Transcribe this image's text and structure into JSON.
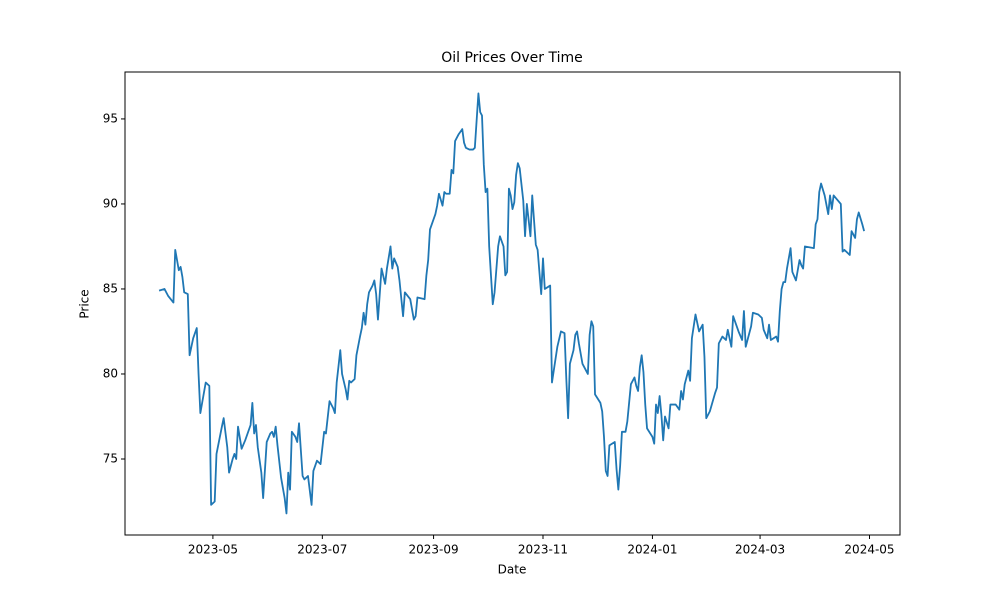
{
  "chart_data": {
    "type": "line",
    "title": "Oil Prices Over Time",
    "x_label": "Date",
    "y_label": "Price",
    "x": [
      -30,
      -27,
      -25,
      -22,
      -21,
      -19,
      -18,
      -17,
      -16,
      -14,
      -13,
      -11,
      -9,
      -8,
      -7,
      -6,
      -4,
      -2,
      -1,
      1,
      2,
      5,
      6,
      8,
      9,
      11,
      12,
      13,
      14,
      16,
      18,
      21,
      22,
      23,
      24,
      25,
      27,
      28,
      30,
      32,
      33,
      34,
      35,
      36,
      38,
      40,
      41,
      42,
      43,
      44,
      46,
      47,
      48,
      50,
      51,
      53,
      55,
      56,
      58,
      60,
      62,
      63,
      65,
      67,
      68,
      69,
      71,
      72,
      74,
      75,
      76,
      77,
      79,
      80,
      82,
      83,
      84,
      85,
      86,
      87,
      89,
      90,
      91,
      92,
      94,
      96,
      97,
      99,
      100,
      101,
      103,
      104,
      106,
      107,
      110,
      112,
      113,
      114,
      118,
      119,
      120,
      121,
      124,
      125,
      126,
      128,
      129,
      130,
      132,
      133,
      134,
      135,
      137,
      139,
      140,
      141,
      143,
      145,
      146,
      148,
      149,
      150,
      151,
      152,
      153,
      154,
      155,
      156,
      157,
      159,
      160,
      162,
      163,
      164,
      165,
      166,
      167,
      168,
      169,
      170,
      171,
      173,
      174,
      175,
      177,
      178,
      180,
      181,
      183,
      184,
      185,
      188,
      189,
      190,
      192,
      194,
      196,
      197,
      198,
      199,
      201,
      202,
      203,
      204,
      206,
      209,
      210,
      211,
      212,
      213,
      216,
      217,
      218,
      219,
      220,
      221,
      224,
      225,
      226,
      227,
      228,
      230,
      231,
      232,
      233,
      235,
      236,
      237,
      238,
      239,
      240,
      241,
      242,
      245,
      246,
      247,
      248,
      249,
      250,
      251,
      252,
      254,
      255,
      258,
      260,
      261,
      262,
      263,
      265,
      266,
      267,
      269,
      270,
      271,
      273,
      274,
      275,
      277,
      280,
      281,
      282,
      284,
      286,
      287,
      289,
      290,
      293,
      295,
      296,
      297,
      298,
      300,
      301,
      304,
      306,
      307,
      309,
      310,
      311,
      314,
      315,
      316,
      317,
      318,
      319,
      320,
      322,
      323,
      325,
      326,
      327,
      328,
      329,
      330,
      335,
      336,
      337,
      338,
      339,
      341,
      343,
      344,
      345,
      346,
      350,
      351,
      352,
      354,
      355,
      356,
      358,
      359,
      360,
      362,
      363
    ],
    "series": [
      {
        "name": "Price",
        "color": "#1f77b4",
        "values": [
          84.9,
          85.0,
          84.6,
          84.2,
          87.3,
          86.1,
          86.3,
          85.7,
          84.8,
          84.7,
          81.1,
          82.1,
          82.7,
          80.0,
          77.7,
          78.3,
          79.5,
          79.3,
          72.3,
          72.5,
          75.3,
          76.9,
          77.4,
          75.7,
          74.2,
          75.0,
          75.3,
          75.0,
          76.9,
          75.6,
          76.1,
          77.0,
          78.3,
          76.5,
          77.0,
          75.7,
          74.2,
          72.7,
          76.0,
          76.5,
          76.6,
          76.3,
          76.9,
          75.8,
          73.9,
          72.7,
          71.8,
          74.2,
          73.2,
          76.6,
          76.3,
          76.0,
          77.1,
          74.0,
          73.8,
          74.0,
          72.3,
          74.3,
          74.9,
          74.7,
          76.6,
          76.5,
          78.4,
          78.0,
          77.7,
          79.5,
          81.4,
          80.0,
          79.1,
          78.5,
          79.6,
          79.5,
          79.7,
          81.1,
          82.2,
          82.7,
          83.6,
          82.9,
          84.1,
          84.8,
          85.2,
          85.5,
          84.7,
          83.2,
          86.2,
          85.3,
          86.2,
          87.5,
          86.2,
          86.8,
          86.3,
          85.5,
          83.4,
          84.8,
          84.4,
          83.2,
          83.4,
          84.5,
          84.4,
          85.8,
          86.7,
          88.5,
          89.4,
          89.9,
          90.6,
          89.9,
          90.7,
          90.6,
          90.6,
          92.0,
          91.8,
          93.7,
          94.1,
          94.4,
          93.6,
          93.3,
          93.2,
          93.2,
          93.3,
          96.5,
          95.4,
          95.2,
          92.3,
          90.7,
          90.9,
          87.5,
          85.8,
          84.1,
          84.8,
          87.5,
          88.1,
          87.5,
          85.8,
          86.0,
          90.9,
          90.5,
          89.7,
          90.1,
          91.7,
          92.4,
          92.1,
          90.2,
          88.1,
          90.0,
          88.1,
          90.5,
          87.6,
          87.3,
          84.7,
          86.8,
          85.0,
          85.2,
          79.5,
          80.2,
          81.6,
          82.5,
          82.4,
          79.7,
          77.4,
          80.6,
          81.4,
          82.3,
          82.5,
          81.8,
          80.6,
          80.0,
          82.3,
          83.1,
          82.8,
          78.8,
          78.3,
          77.8,
          76.3,
          74.3,
          74.0,
          75.8,
          76.0,
          74.4,
          73.2,
          74.6,
          76.6,
          76.6,
          77.2,
          78.3,
          79.4,
          79.8,
          79.3,
          79.0,
          80.4,
          81.1,
          80.1,
          78.2,
          76.8,
          76.3,
          75.9,
          78.2,
          77.7,
          78.7,
          77.6,
          76.1,
          77.5,
          76.8,
          78.2,
          78.2,
          77.9,
          79.0,
          78.5,
          79.4,
          80.2,
          79.6,
          82.1,
          83.5,
          83.0,
          82.5,
          82.9,
          81.0,
          77.4,
          77.8,
          78.9,
          79.2,
          81.8,
          82.2,
          82.0,
          82.6,
          81.6,
          83.4,
          82.5,
          82.0,
          83.7,
          81.6,
          82.0,
          82.8,
          83.6,
          83.5,
          83.3,
          82.6,
          82.1,
          82.9,
          82.0,
          82.2,
          81.9,
          83.7,
          85.0,
          85.4,
          85.4,
          86.2,
          87.4,
          86.0,
          85.5,
          86.1,
          86.7,
          86.4,
          86.2,
          87.5,
          87.4,
          88.8,
          89.1,
          90.7,
          91.2,
          90.5,
          89.4,
          90.5,
          89.7,
          90.5,
          90.0,
          87.2,
          87.3,
          87.1,
          87.0,
          88.4,
          88.0,
          89.1,
          89.5,
          88.8,
          88.4
        ]
      }
    ],
    "xlim": [
      -49,
      383
    ],
    "ylim": [
      70.53,
      97.76
    ],
    "xticks": [
      {
        "value": 0,
        "label": "2023-05"
      },
      {
        "value": 61,
        "label": "2023-07"
      },
      {
        "value": 123,
        "label": "2023-09"
      },
      {
        "value": 184,
        "label": "2023-11"
      },
      {
        "value": 245,
        "label": "2024-01"
      },
      {
        "value": 305,
        "label": "2024-03"
      },
      {
        "value": 366,
        "label": "2024-05"
      }
    ],
    "yticks": [
      75,
      80,
      85,
      90,
      95
    ],
    "grid": false
  }
}
